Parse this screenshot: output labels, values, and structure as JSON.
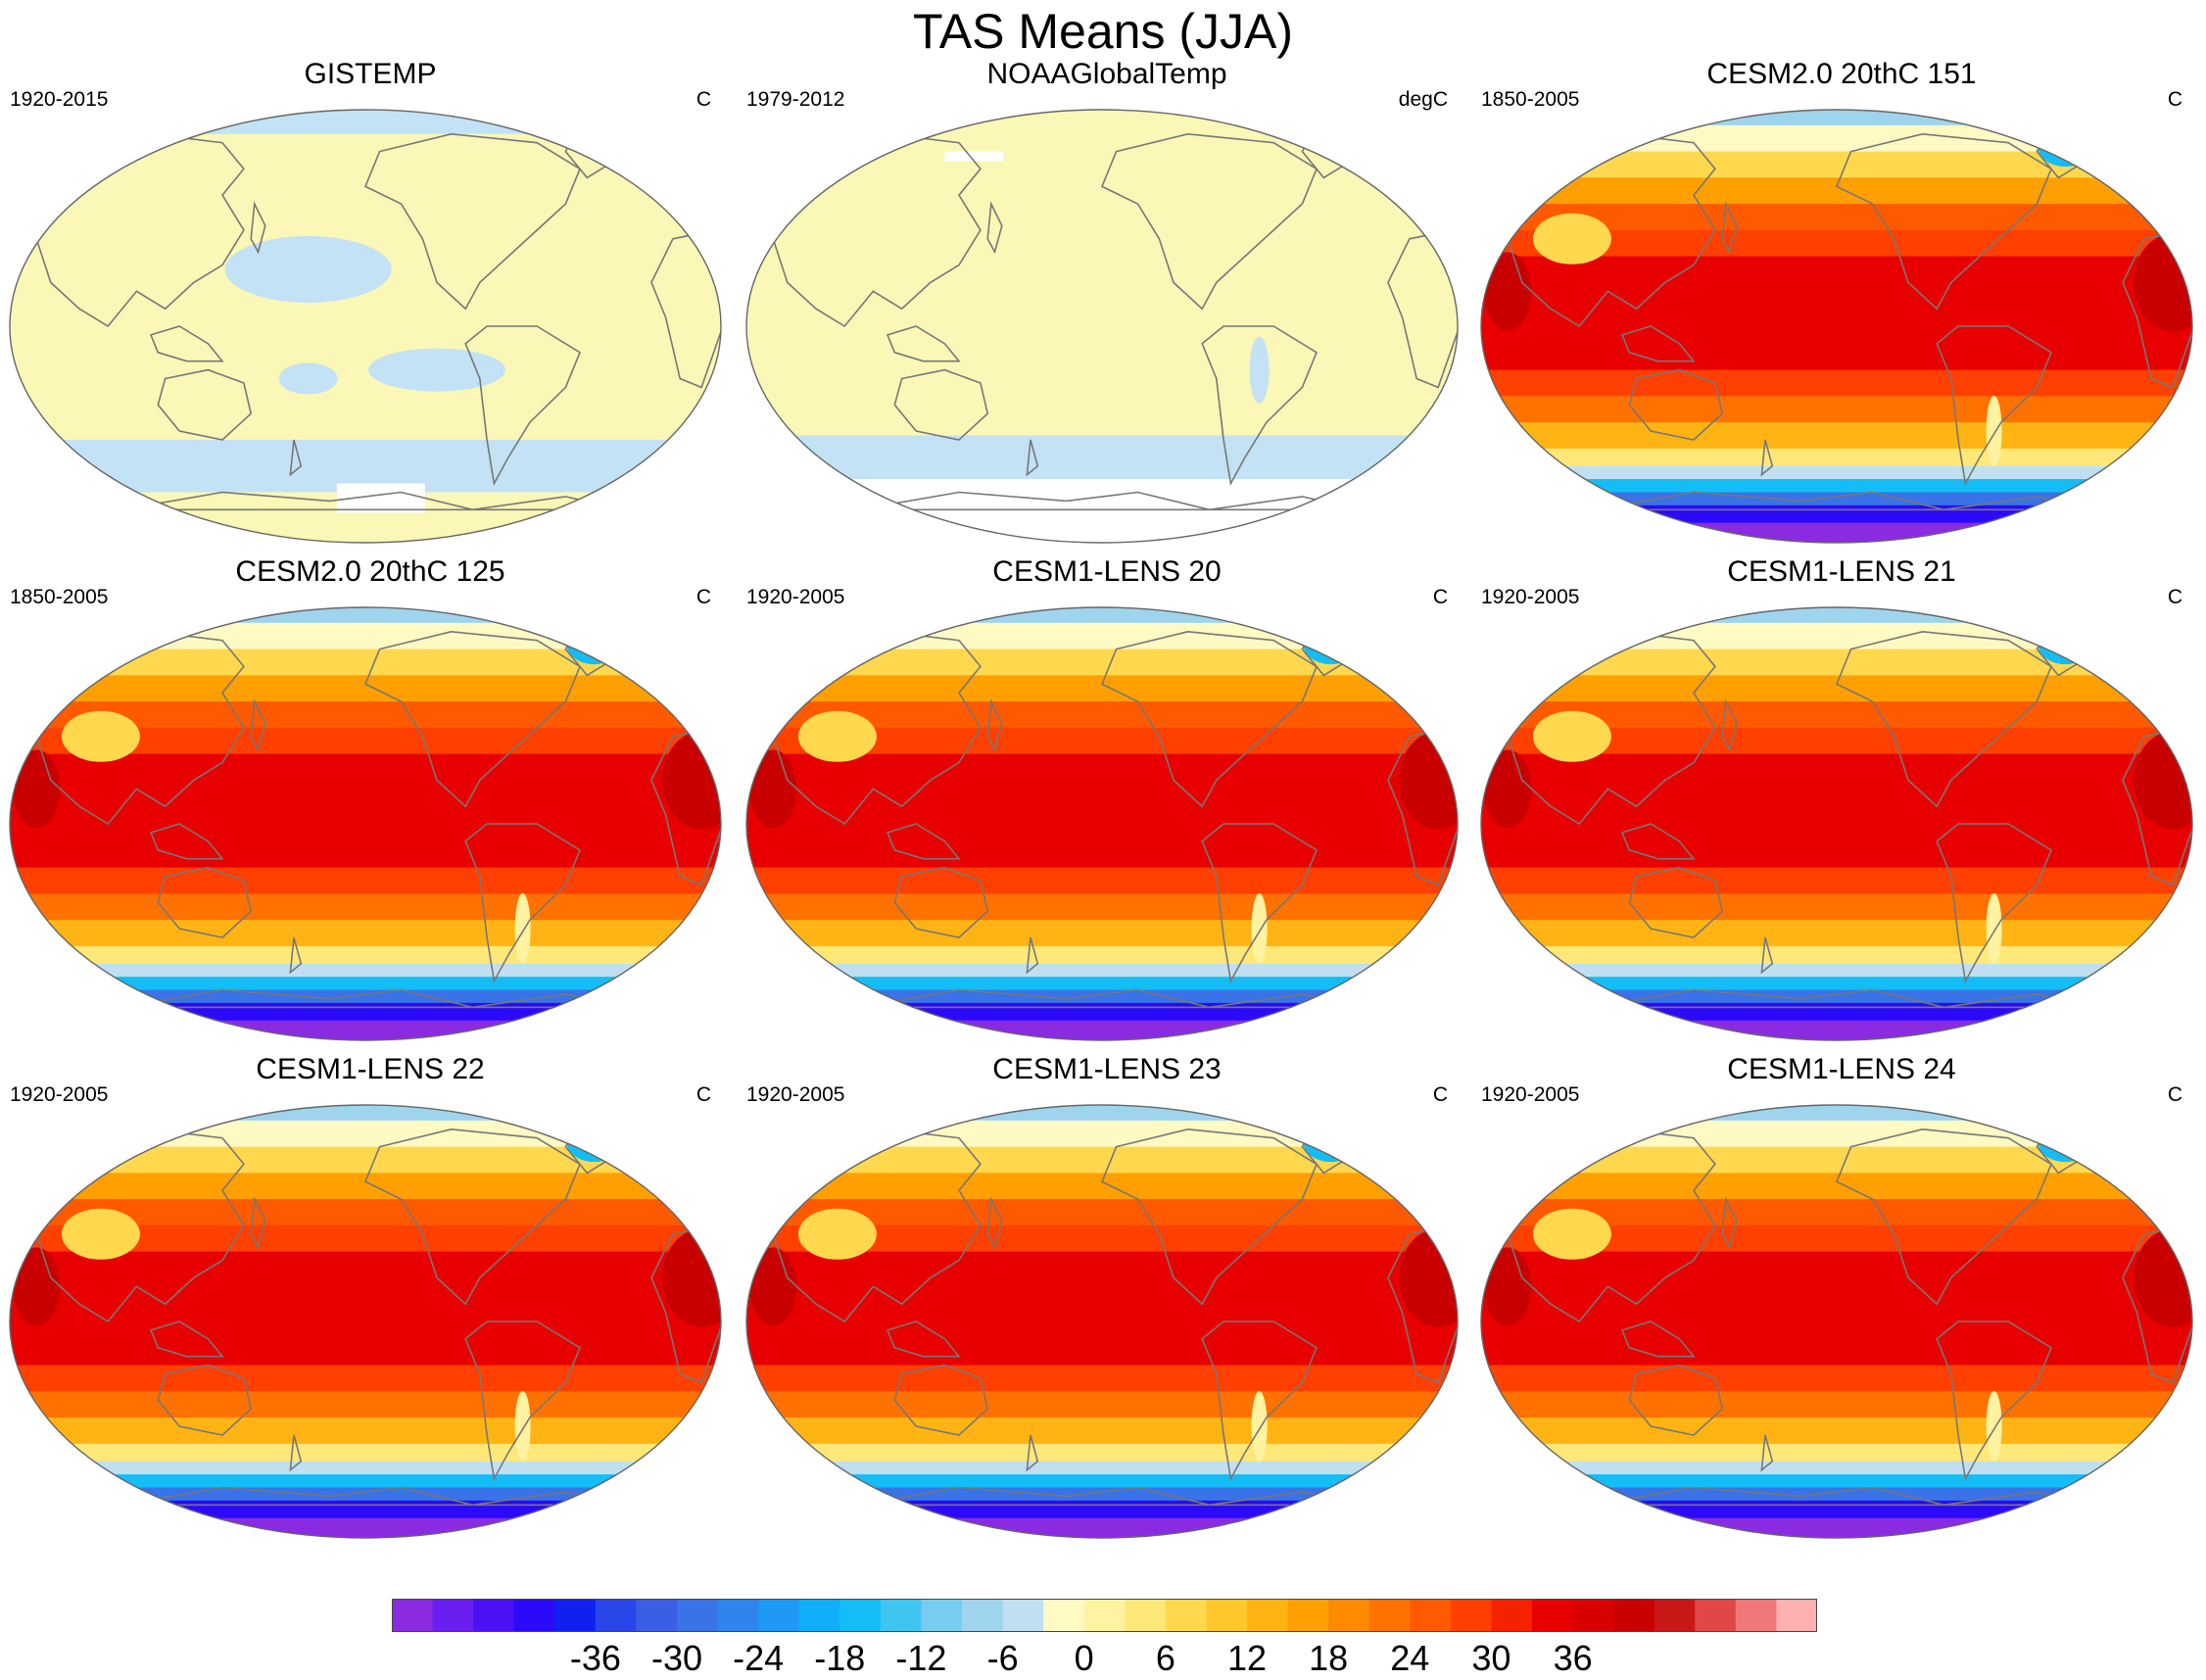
{
  "title": "TAS Means (JJA)",
  "panels": [
    {
      "title": "GISTEMP",
      "period": "1920-2015",
      "units": "C",
      "style": "observed"
    },
    {
      "title": "NOAAGlobalTemp",
      "period": "1979-2012",
      "units": "degC",
      "style": "observed-sparse"
    },
    {
      "title": "CESM2.0 20thC 151",
      "period": "1850-2005",
      "units": "C",
      "style": "model"
    },
    {
      "title": "CESM2.0 20thC 125",
      "period": "1850-2005",
      "units": "C",
      "style": "model"
    },
    {
      "title": "CESM1-LENS 20",
      "period": "1920-2005",
      "units": "C",
      "style": "model"
    },
    {
      "title": "CESM1-LENS 21",
      "period": "1920-2005",
      "units": "C",
      "style": "model"
    },
    {
      "title": "CESM1-LENS 22",
      "period": "1920-2005",
      "units": "C",
      "style": "model"
    },
    {
      "title": "CESM1-LENS 23",
      "period": "1920-2005",
      "units": "C",
      "style": "model"
    },
    {
      "title": "CESM1-LENS 24",
      "period": "1920-2005",
      "units": "C",
      "style": "model"
    }
  ],
  "colorbar": {
    "colors": [
      "#8a2be2",
      "#6a1ef0",
      "#4b10f5",
      "#2a0af8",
      "#1020f0",
      "#2a45e8",
      "#3a5ee4",
      "#3a72e8",
      "#2f84ee",
      "#1f99f6",
      "#10aef8",
      "#14bdf6",
      "#40c4f0",
      "#78cdee",
      "#9fd4ee",
      "#c0e0f2",
      "#fff9c4",
      "#fff2a0",
      "#ffe878",
      "#ffd84e",
      "#ffc82a",
      "#ffb414",
      "#ffa000",
      "#ff8a00",
      "#ff7200",
      "#ff5a00",
      "#ff4000",
      "#f52200",
      "#e80000",
      "#d80000",
      "#c80000",
      "#c81818",
      "#e04848",
      "#f07878",
      "#ffb0b0"
    ],
    "tick_labels": [
      "-36",
      "-30",
      "-24",
      "-18",
      "-12",
      "-6",
      "0",
      "6",
      "12",
      "18",
      "24",
      "30",
      "36"
    ]
  },
  "legend_colors": {
    "observed_fill": "#fbf7b6",
    "observed_cool": "#c3e2f5",
    "missing": "#ffffff",
    "coastline": "#777777"
  }
}
